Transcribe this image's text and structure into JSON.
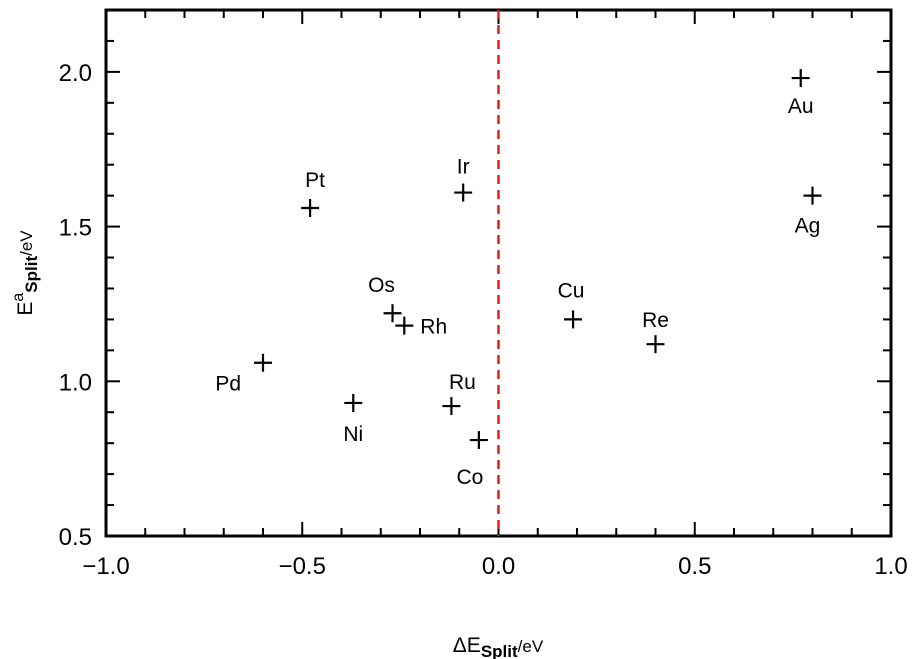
{
  "chart_data": {
    "type": "scatter",
    "title": "",
    "xlabel": {
      "main": "ΔE",
      "sub": "Split",
      "unit": "/eV"
    },
    "ylabel": {
      "main": "E",
      "sup": "a",
      "sub": "Split",
      "unit": "/eV"
    },
    "xlim": [
      -1.0,
      1.0
    ],
    "ylim": [
      0.5,
      2.2
    ],
    "xticks": [
      -1.0,
      -0.5,
      0.0,
      0.5,
      1.0
    ],
    "xtick_labels": [
      "−1.0",
      "−0.5",
      "0.0",
      "0.5",
      "1.0"
    ],
    "yticks": [
      0.5,
      1.0,
      1.5,
      2.0
    ],
    "ytick_labels": [
      "0.5",
      "1.0",
      "1.5",
      "2.0"
    ],
    "grid": false,
    "reference_line": {
      "x": 0.0,
      "style": "dashed",
      "color": "#e02020"
    },
    "marker": "+",
    "points": [
      {
        "label": "Au",
        "x": 0.77,
        "y": 1.98
      },
      {
        "label": "Ag",
        "x": 0.8,
        "y": 1.6
      },
      {
        "label": "Pt",
        "x": -0.48,
        "y": 1.56
      },
      {
        "label": "Ir",
        "x": -0.09,
        "y": 1.61
      },
      {
        "label": "Os",
        "x": -0.27,
        "y": 1.22
      },
      {
        "label": "Rh",
        "x": -0.24,
        "y": 1.18
      },
      {
        "label": "Cu",
        "x": 0.19,
        "y": 1.2
      },
      {
        "label": "Re",
        "x": 0.4,
        "y": 1.12
      },
      {
        "label": "Pd",
        "x": -0.6,
        "y": 1.06
      },
      {
        "label": "Ni",
        "x": -0.37,
        "y": 0.93
      },
      {
        "label": "Ru",
        "x": -0.12,
        "y": 0.92
      },
      {
        "label": "Co",
        "x": -0.05,
        "y": 0.81
      }
    ]
  }
}
